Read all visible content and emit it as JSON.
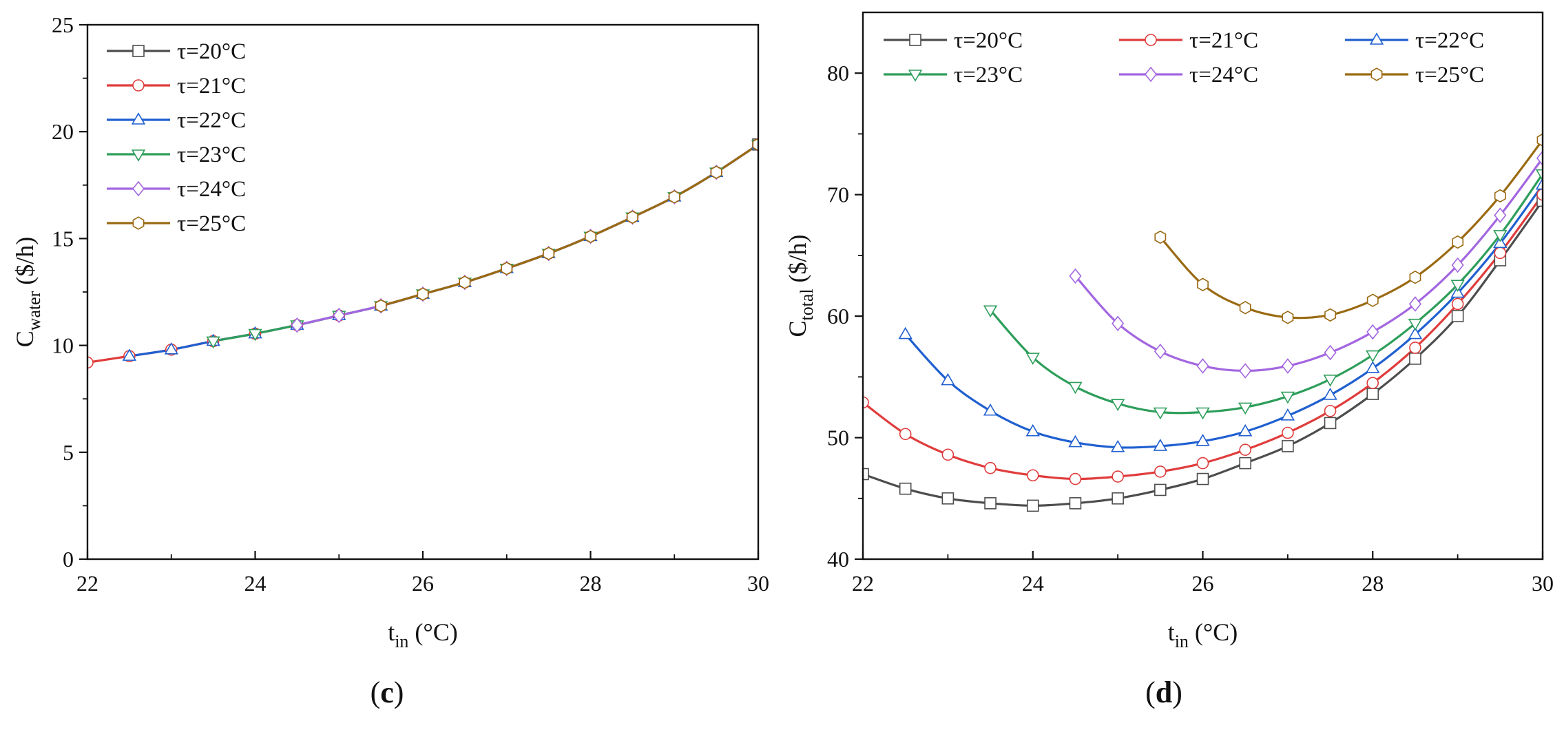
{
  "chart_data": [
    {
      "id": "c",
      "type": "line",
      "panel_label": "(c)",
      "panel_letter": "c",
      "xlabel": {
        "main": "t",
        "sub": "in",
        "unit": " (°C)"
      },
      "ylabel": {
        "main": "C",
        "sub": "water",
        "unit": " ($/h)"
      },
      "xlim": [
        22,
        30
      ],
      "ylim": [
        0,
        25
      ],
      "xticks": [
        22,
        24,
        26,
        28,
        30
      ],
      "yticks": [
        0,
        5,
        10,
        15,
        20,
        25
      ],
      "legend_position": "top-left",
      "legend_layout": "column",
      "series": [
        {
          "name": "τ=20°C",
          "color": "#4d4d4d",
          "marker": "square",
          "x": [
            30
          ],
          "y": [
            19.4
          ]
        },
        {
          "name": "τ=21°C",
          "color": "#e03c3c",
          "marker": "circle",
          "x": [
            22,
            22.5,
            23,
            23.5,
            24,
            24.5,
            25,
            25.5,
            26,
            26.5,
            27,
            27.5,
            28,
            28.5,
            29,
            29.5,
            30
          ],
          "y": [
            9.2,
            9.5,
            9.8,
            10.2,
            10.55,
            10.95,
            11.4,
            11.85,
            12.4,
            12.95,
            13.6,
            14.3,
            15.1,
            16.0,
            16.95,
            18.1,
            19.4
          ]
        },
        {
          "name": "τ=22°C",
          "color": "#1f5fd0",
          "marker": "triangle-up",
          "x": [
            22.5,
            23,
            23.5,
            24,
            24.5,
            25,
            25.5,
            26,
            26.5,
            27,
            27.5,
            28,
            28.5,
            29,
            29.5,
            30
          ],
          "y": [
            9.5,
            9.8,
            10.2,
            10.55,
            10.95,
            11.4,
            11.85,
            12.4,
            12.95,
            13.6,
            14.3,
            15.1,
            16.0,
            16.95,
            18.1,
            19.4
          ]
        },
        {
          "name": "τ=23°C",
          "color": "#2e9e5b",
          "marker": "triangle-down",
          "x": [
            23.5,
            24,
            24.5,
            25,
            25.5,
            26,
            26.5,
            27,
            27.5,
            28,
            28.5,
            29,
            29.5,
            30
          ],
          "y": [
            10.2,
            10.55,
            10.95,
            11.4,
            11.85,
            12.4,
            12.95,
            13.6,
            14.3,
            15.1,
            16.0,
            16.95,
            18.1,
            19.4
          ]
        },
        {
          "name": "τ=24°C",
          "color": "#a366e0",
          "marker": "diamond",
          "x": [
            24.5,
            25,
            25.5,
            26,
            26.5,
            27,
            27.5,
            28,
            28.5,
            29,
            29.5,
            30
          ],
          "y": [
            10.95,
            11.4,
            11.85,
            12.4,
            12.95,
            13.6,
            14.3,
            15.1,
            16.0,
            16.95,
            18.1,
            19.4
          ]
        },
        {
          "name": "τ=25°C",
          "color": "#9a6a12",
          "marker": "hexagon",
          "x": [
            25.5,
            26,
            26.5,
            27,
            27.5,
            28,
            28.5,
            29,
            29.5,
            30
          ],
          "y": [
            11.85,
            12.4,
            12.95,
            13.6,
            14.3,
            15.1,
            16.0,
            16.95,
            18.1,
            19.4
          ]
        }
      ]
    },
    {
      "id": "d",
      "type": "line",
      "panel_label": "(d)",
      "panel_letter": "d",
      "xlabel": {
        "main": "t",
        "sub": "in",
        "unit": " (°C)"
      },
      "ylabel": {
        "main": "C",
        "sub": "total",
        "unit": " ($/h)"
      },
      "xlim": [
        22,
        30
      ],
      "ylim": [
        40,
        85
      ],
      "xticks": [
        22,
        24,
        26,
        28,
        30
      ],
      "yticks": [
        40,
        50,
        60,
        70,
        80
      ],
      "legend_position": "top",
      "legend_layout": "grid-3col",
      "series": [
        {
          "name": "τ=20°C",
          "color": "#4d4d4d",
          "marker": "square",
          "x": [
            22,
            22.5,
            23,
            23.5,
            24,
            24.5,
            25,
            25.5,
            26,
            26.5,
            27,
            27.5,
            28,
            28.5,
            29,
            29.5,
            30
          ],
          "y": [
            47.0,
            45.8,
            45.0,
            44.6,
            44.4,
            44.6,
            45.0,
            45.7,
            46.6,
            47.9,
            49.3,
            51.2,
            53.6,
            56.5,
            60.0,
            64.6,
            69.5
          ]
        },
        {
          "name": "τ=21°C",
          "color": "#e03c3c",
          "marker": "circle",
          "x": [
            22,
            22.5,
            23,
            23.5,
            24,
            24.5,
            25,
            25.5,
            26,
            26.5,
            27,
            27.5,
            28,
            28.5,
            29,
            29.5,
            30
          ],
          "y": [
            52.9,
            50.3,
            48.6,
            47.5,
            46.9,
            46.6,
            46.8,
            47.2,
            47.9,
            49.0,
            50.4,
            52.2,
            54.5,
            57.4,
            61.0,
            65.2,
            70.0
          ]
        },
        {
          "name": "τ=22°C",
          "color": "#1f5fd0",
          "marker": "triangle-up",
          "x": [
            22.5,
            23,
            23.5,
            24,
            24.5,
            25,
            25.5,
            26,
            26.5,
            27,
            27.5,
            28,
            28.5,
            29,
            29.5,
            30
          ],
          "y": [
            58.5,
            54.7,
            52.2,
            50.5,
            49.6,
            49.2,
            49.3,
            49.7,
            50.5,
            51.8,
            53.5,
            55.7,
            58.5,
            61.9,
            66.0,
            70.8
          ]
        },
        {
          "name": "τ=23°C",
          "color": "#2e9e5b",
          "marker": "triangle-down",
          "x": [
            23.5,
            24,
            24.5,
            25,
            25.5,
            26,
            26.5,
            27,
            27.5,
            28,
            28.5,
            29,
            29.5,
            30
          ],
          "y": [
            60.5,
            56.6,
            54.2,
            52.8,
            52.1,
            52.1,
            52.5,
            53.4,
            54.8,
            56.8,
            59.4,
            62.6,
            66.7,
            71.7
          ]
        },
        {
          "name": "τ=24°C",
          "color": "#a366e0",
          "marker": "diamond",
          "x": [
            24.5,
            25,
            25.5,
            26,
            26.5,
            27,
            27.5,
            28,
            28.5,
            29,
            29.5,
            30
          ],
          "y": [
            63.3,
            59.4,
            57.1,
            55.9,
            55.5,
            55.9,
            57.0,
            58.7,
            61.0,
            64.2,
            68.3,
            73.0
          ]
        },
        {
          "name": "τ=25°C",
          "color": "#9a6a12",
          "marker": "hexagon",
          "x": [
            25.5,
            26,
            26.5,
            27,
            27.5,
            28,
            28.5,
            29,
            29.5,
            30
          ],
          "y": [
            66.5,
            62.6,
            60.7,
            59.9,
            60.1,
            61.3,
            63.2,
            66.1,
            69.9,
            74.5
          ]
        }
      ]
    }
  ]
}
